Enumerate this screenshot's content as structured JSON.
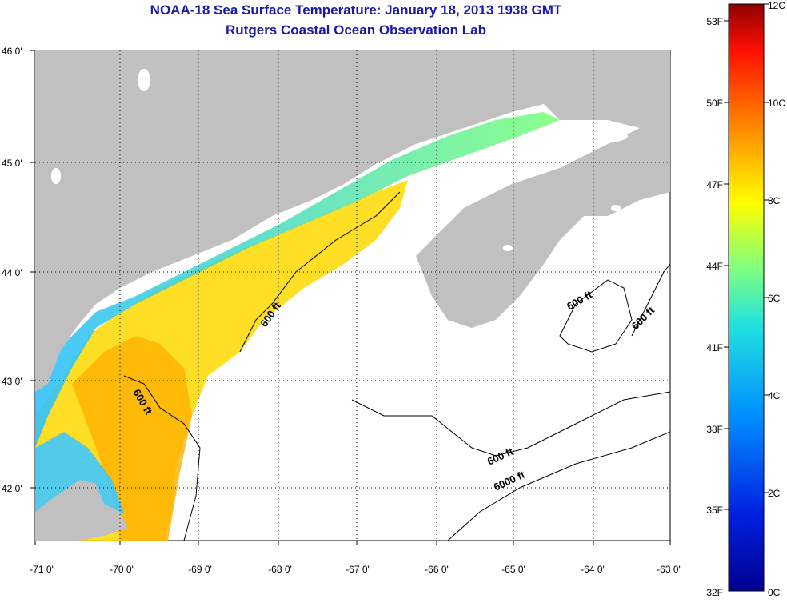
{
  "title": "NOAA-18 Sea Surface Temperature:  January 18, 2013 1938 GMT",
  "subtitle": "Rutgers Coastal Ocean Observation Lab",
  "map": {
    "lon_labels": [
      "-71 0'",
      "-70 0'",
      "-69 0'",
      "-68 0'",
      "-67 0'",
      "-66 0'",
      "-65 0'",
      "-64 0'",
      "-63 0'"
    ],
    "lat_labels": [
      "46 0'",
      "45 0'",
      "44 0'",
      "43 0'",
      "42 0'"
    ],
    "contour_labels": [
      "600 ft",
      "600 ft",
      "600 ft",
      "600 ft",
      "600 ft",
      "6000 ft"
    ],
    "land_color": "#c0c0c0",
    "nodata_color": "#ffffff"
  },
  "colorbar": {
    "celsius_labels": [
      "12C",
      "10C",
      "8C",
      "6C",
      "4C",
      "2C",
      "0C"
    ],
    "fahrenheit_labels": [
      "53F",
      "50F",
      "47F",
      "44F",
      "41F",
      "38F",
      "35F",
      "32F"
    ],
    "colors": [
      "#00008f",
      "#0040ff",
      "#00c0ff",
      "#40ffbf",
      "#bfff40",
      "#ffc000",
      "#ff4000",
      "#8f0000"
    ]
  }
}
